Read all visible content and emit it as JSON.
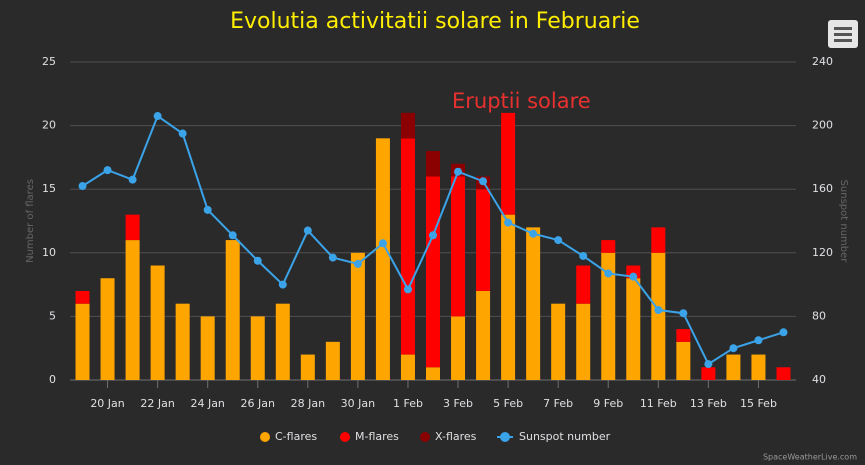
{
  "chart_data": {
    "type": "stacked-bar-line",
    "title": "Evolutia activitatii solare in Februarie",
    "annotation": "Eruptii solare",
    "credit": "SpaceWeatherLive.com",
    "categories": [
      null,
      "20 Jan",
      null,
      "22 Jan",
      null,
      "24 Jan",
      null,
      "26 Jan",
      null,
      "28 Jan",
      null,
      "30 Jan",
      null,
      "1 Feb",
      null,
      "3 Feb",
      null,
      "5 Feb",
      null,
      "7 Feb",
      null,
      "9 Feb",
      null,
      "11 Feb",
      null,
      "13 Feb",
      null,
      "15 Feb",
      null
    ],
    "y_label": "Number of flares",
    "y2_label": "Sunspot number",
    "ylim": [
      0,
      25
    ],
    "yticks": [
      0,
      5,
      10,
      15,
      20,
      25
    ],
    "y2lim": [
      40,
      240
    ],
    "y2ticks": [
      40,
      80,
      120,
      160,
      200,
      240
    ],
    "grid": true,
    "legend": "bottom",
    "series": [
      {
        "name": "C-flares",
        "color": "#ffa500",
        "values": [
          6,
          8,
          11,
          9,
          6,
          5,
          11,
          5,
          6,
          2,
          3,
          10,
          19,
          2,
          1,
          5,
          7,
          13,
          12,
          6,
          6,
          10,
          8,
          10,
          3,
          0,
          2,
          2,
          0
        ]
      },
      {
        "name": "M-flares",
        "color": "#ff0000",
        "values": [
          1,
          0,
          2,
          0,
          0,
          0,
          0,
          0,
          0,
          0,
          0,
          0,
          0,
          17,
          15,
          11,
          8,
          8,
          0,
          0,
          3,
          1,
          1,
          2,
          1,
          1,
          0,
          0,
          1
        ]
      },
      {
        "name": "X-flares",
        "color": "#8b0000",
        "values": [
          0,
          0,
          0,
          0,
          0,
          0,
          0,
          0,
          0,
          0,
          0,
          0,
          0,
          2,
          2,
          1,
          1,
          0,
          0,
          0,
          0,
          0,
          0,
          0,
          0,
          0,
          0,
          0,
          0
        ]
      },
      {
        "name": "Sunspot number",
        "color": "#3ba3e8",
        "axis": "y2",
        "values": [
          162,
          172,
          166,
          206,
          195,
          147,
          131,
          115,
          100,
          134,
          117,
          113,
          126,
          97,
          131,
          171,
          165,
          139,
          132,
          128,
          118,
          107,
          105,
          84,
          82,
          50,
          60,
          65,
          70
        ]
      }
    ]
  }
}
